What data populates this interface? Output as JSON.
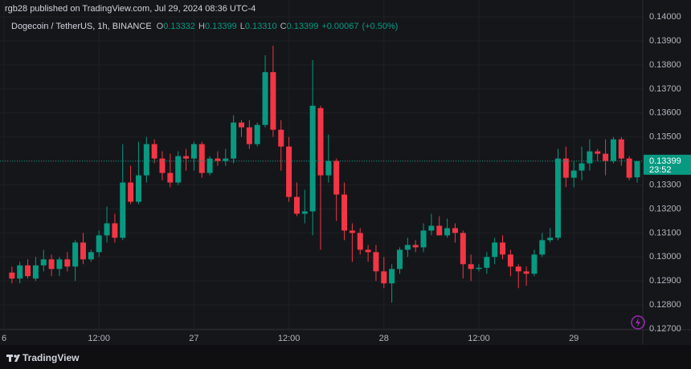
{
  "chart_data": {
    "type": "candlestick",
    "attribution": "rgb28 published on TradingView.com, Jul 29, 2024 08:36 UTC-4",
    "title": "Dogecoin / TetherUS, 1h, BINANCE",
    "ohlc_legend": [
      {
        "key": "O",
        "value": 0.13332
      },
      {
        "key": "H",
        "value": 0.13399
      },
      {
        "key": "L",
        "value": 0.1331,
        "label": "0.13310"
      },
      {
        "key": "C",
        "value": 0.13399
      }
    ],
    "change": {
      "value": 0.00067,
      "label": "+0.00067"
    },
    "change_pct": {
      "value": 0.5,
      "label": "(+0.50%)"
    },
    "last_price": 0.13399,
    "countdown": "23:52",
    "brand": "TradingView",
    "up_color": "#089981",
    "down_color": "#f23645",
    "grid": true,
    "categories": [
      "6",
      null,
      null,
      null,
      null,
      null,
      null,
      null,
      null,
      null,
      null,
      null,
      "12:00",
      null,
      null,
      null,
      null,
      null,
      null,
      null,
      null,
      null,
      null,
      null,
      "27",
      null,
      null,
      null,
      null,
      null,
      null,
      null,
      null,
      null,
      null,
      null,
      "12:00",
      null,
      null,
      null,
      null,
      null,
      null,
      null,
      null,
      null,
      null,
      null,
      "28",
      null,
      null,
      null,
      null,
      null,
      null,
      null,
      null,
      null,
      null,
      null,
      "12:00",
      null,
      null,
      null,
      null,
      null,
      null,
      null,
      null,
      null,
      null,
      null,
      "29",
      null,
      null,
      null,
      null,
      null,
      null,
      null,
      null
    ],
    "open": [
      null,
      0.12935,
      0.1291,
      0.12965,
      0.1291,
      0.12965,
      0.1299,
      0.1295,
      0.1299,
      0.1296,
      0.1306,
      0.1299,
      0.1302,
      0.1309,
      0.1314,
      0.1308,
      0.1331,
      0.1323,
      0.1334,
      0.1347,
      0.1341,
      0.1335,
      0.1331,
      0.1342,
      0.1341,
      0.1347,
      0.1335,
      0.1341,
      0.134,
      0.1341,
      0.1356,
      0.1354,
      0.1347,
      0.1355,
      0.1377,
      0.1353,
      0.1346,
      0.1325,
      0.1318,
      0.1319,
      0.1362,
      0.1334,
      0.134,
      0.1326,
      0.1311,
      0.131,
      0.1303,
      0.1302,
      0.1294,
      0.1289,
      0.1295,
      0.1303,
      0.1305,
      0.1304,
      0.1311,
      0.1313,
      0.1309,
      0.1312,
      0.131,
      0.1297,
      0.1295,
      0.12955,
      0.13,
      0.1306,
      0.1301,
      0.1296,
      0.1294,
      0.1293,
      0.1301,
      0.1307,
      0.1308,
      0.1341,
      0.1333,
      0.1336,
      0.1339,
      0.1344,
      0.1343,
      0.134,
      0.1349,
      0.1341,
      0.13332
    ],
    "high": [
      null,
      0.1296,
      0.1298,
      0.1299,
      0.13,
      0.1303,
      0.1301,
      0.13,
      0.1302,
      0.1307,
      0.131,
      0.1303,
      0.1311,
      0.1321,
      0.1318,
      0.1347,
      0.1338,
      0.1348,
      0.135,
      0.1349,
      0.1344,
      0.1343,
      0.1344,
      0.1345,
      0.1348,
      0.1348,
      0.1342,
      0.1344,
      0.1345,
      0.1359,
      0.1357,
      0.1357,
      0.1356,
      0.1384,
      0.1388,
      0.1357,
      0.135,
      0.1331,
      0.1328,
      0.1382,
      0.1363,
      0.1351,
      0.1341,
      0.1331,
      0.1314,
      0.1312,
      0.1305,
      0.1305,
      0.13,
      0.1297,
      0.1304,
      0.1308,
      0.1307,
      0.1314,
      0.1318,
      0.1317,
      0.1316,
      0.1314,
      0.1311,
      0.1301,
      0.1297,
      0.1302,
      0.1308,
      0.1309,
      0.1303,
      0.1297,
      0.1296,
      0.1303,
      0.131,
      0.1312,
      0.1345,
      0.1346,
      0.134,
      0.1346,
      0.1349,
      0.1345,
      0.1349,
      0.135,
      0.135,
      0.1342,
      0.13399
    ],
    "low": [
      null,
      0.1289,
      0.1289,
      0.1291,
      0.129,
      0.1294,
      0.1292,
      0.1292,
      0.1294,
      0.129,
      0.1297,
      0.1298,
      0.13,
      0.1306,
      0.1306,
      0.1307,
      0.1322,
      0.1322,
      0.1331,
      0.1339,
      0.1332,
      0.1329,
      0.133,
      0.1336,
      0.1336,
      0.1333,
      0.1334,
      0.1338,
      0.1338,
      0.1339,
      0.135,
      0.1345,
      0.1346,
      0.1354,
      0.135,
      0.1336,
      0.1323,
      0.1317,
      0.1314,
      0.1309,
      0.1303,
      0.1331,
      0.1315,
      0.1307,
      0.1298,
      0.1301,
      0.1298,
      0.129,
      0.1287,
      0.1281,
      0.1293,
      0.13,
      0.1302,
      0.1302,
      0.1309,
      0.1309,
      0.1308,
      0.1306,
      0.1291,
      0.129,
      0.1294,
      0.1293,
      0.1297,
      0.1299,
      0.1292,
      0.1287,
      0.1288,
      0.1292,
      0.13,
      0.1306,
      0.1307,
      0.1329,
      0.1329,
      0.1332,
      0.1336,
      0.134,
      0.1334,
      0.1339,
      0.1338,
      0.1332,
      0.1331
    ],
    "close": [
      null,
      0.1291,
      0.12965,
      0.1292,
      0.12965,
      0.1299,
      0.1295,
      0.1299,
      0.1296,
      0.1306,
      0.1299,
      0.1302,
      0.1309,
      0.1314,
      0.1308,
      0.1331,
      0.1323,
      0.1334,
      0.1347,
      0.1341,
      0.1335,
      0.1331,
      0.1342,
      0.1341,
      0.1347,
      0.1335,
      0.1341,
      0.134,
      0.1341,
      0.1356,
      0.1354,
      0.1347,
      0.1355,
      0.1377,
      0.1353,
      0.1346,
      0.1325,
      0.1318,
      0.1319,
      0.1363,
      0.1334,
      0.134,
      0.1326,
      0.1311,
      0.131,
      0.1303,
      0.1302,
      0.1294,
      0.1289,
      0.1295,
      0.1303,
      0.1305,
      0.1304,
      0.1311,
      0.1313,
      0.1309,
      0.1312,
      0.131,
      0.1297,
      0.1295,
      0.12955,
      0.13,
      0.1306,
      0.1301,
      0.1296,
      0.1294,
      0.1293,
      0.1301,
      0.1307,
      0.1308,
      0.1341,
      0.1333,
      0.1336,
      0.1339,
      0.1344,
      0.1343,
      0.134,
      0.1349,
      0.1341,
      0.1333,
      0.13399
    ],
    "ylim": [
      0.12697,
      0.14037
    ],
    "yticks": [
      {
        "value": 0.127,
        "label": "0.12700"
      },
      {
        "value": 0.128,
        "label": "0.12800"
      },
      {
        "value": 0.129,
        "label": "0.12900"
      },
      {
        "value": 0.13,
        "label": "0.13000"
      },
      {
        "value": 0.131,
        "label": "0.13100"
      },
      {
        "value": 0.132,
        "label": "0.13200"
      },
      {
        "value": 0.133,
        "label": "0.13300"
      },
      {
        "value": 0.134,
        "label": "0.13400"
      },
      {
        "value": 0.135,
        "label": "0.13500"
      },
      {
        "value": 0.136,
        "label": "0.13600"
      },
      {
        "value": 0.137,
        "label": "0.13700"
      },
      {
        "value": 0.138,
        "label": "0.13800"
      },
      {
        "value": 0.139,
        "label": "0.13900"
      },
      {
        "value": 0.14,
        "label": "0.14000"
      }
    ]
  }
}
